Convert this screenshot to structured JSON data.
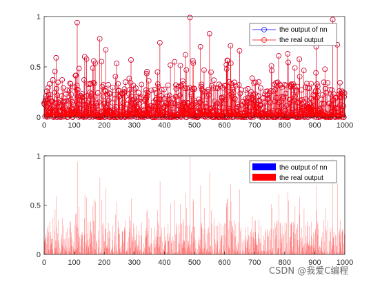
{
  "watermark": "CSDN @我爱C编程",
  "colors": {
    "nn": "#0000ff",
    "real": "#ff0000",
    "axis": "#262626"
  },
  "chart_data": [
    {
      "type": "stem",
      "title": "",
      "xlabel": "",
      "ylabel": "",
      "xlim": [
        0,
        1000
      ],
      "ylim": [
        0,
        1
      ],
      "xticks": [
        "0",
        "100",
        "200",
        "300",
        "400",
        "500",
        "600",
        "700",
        "800",
        "900",
        "1000"
      ],
      "yticks": [
        "0",
        "0.5",
        "1"
      ],
      "legend": {
        "position": "top-right",
        "entries": [
          "the output of nn",
          "the real output"
        ]
      },
      "series": [
        {
          "name": "the output of nn",
          "marker": "circle",
          "color": "#0000ff"
        },
        {
          "name": "the real output",
          "marker": "circle",
          "color": "#ff0000"
        }
      ],
      "n_points": 1000,
      "peaks": [
        {
          "x": 110,
          "y": 0.94
        },
        {
          "x": 185,
          "y": 0.78
        },
        {
          "x": 385,
          "y": 0.74
        },
        {
          "x": 485,
          "y": 0.99
        },
        {
          "x": 550,
          "y": 0.83
        },
        {
          "x": 520,
          "y": 0.7
        },
        {
          "x": 620,
          "y": 0.71
        },
        {
          "x": 960,
          "y": 0.97
        },
        {
          "x": 975,
          "y": 0.72
        },
        {
          "x": 905,
          "y": 0.7
        },
        {
          "x": 135,
          "y": 0.6
        },
        {
          "x": 205,
          "y": 0.67
        },
        {
          "x": 470,
          "y": 0.62
        },
        {
          "x": 650,
          "y": 0.66
        },
        {
          "x": 40,
          "y": 0.59
        },
        {
          "x": 810,
          "y": 0.63
        },
        {
          "x": 780,
          "y": 0.61
        }
      ]
    },
    {
      "type": "bar",
      "title": "",
      "xlabel": "",
      "ylabel": "",
      "xlim": [
        0,
        1000
      ],
      "ylim": [
        0,
        1
      ],
      "xticks": [
        "0",
        "100",
        "200",
        "300",
        "400",
        "500",
        "600",
        "700",
        "800",
        "900",
        "1000"
      ],
      "yticks": [
        "0",
        "0.5",
        "1"
      ],
      "legend": {
        "position": "top-right",
        "entries": [
          "the output of nn",
          "the real output"
        ]
      },
      "series": [
        {
          "name": "the output of nn",
          "color": "#0000ff"
        },
        {
          "name": "the real output",
          "color": "#ff0000"
        }
      ],
      "n_points": 1000,
      "peaks": [
        {
          "x": 110,
          "y": 0.94
        },
        {
          "x": 185,
          "y": 0.78
        },
        {
          "x": 385,
          "y": 0.74
        },
        {
          "x": 485,
          "y": 0.99
        },
        {
          "x": 550,
          "y": 0.83
        },
        {
          "x": 520,
          "y": 0.7
        },
        {
          "x": 620,
          "y": 0.71
        },
        {
          "x": 960,
          "y": 0.97
        },
        {
          "x": 975,
          "y": 0.72
        },
        {
          "x": 905,
          "y": 0.7
        },
        {
          "x": 135,
          "y": 0.6
        },
        {
          "x": 205,
          "y": 0.67
        },
        {
          "x": 470,
          "y": 0.62
        },
        {
          "x": 650,
          "y": 0.66
        },
        {
          "x": 40,
          "y": 0.59
        },
        {
          "x": 810,
          "y": 0.63
        },
        {
          "x": 780,
          "y": 0.61
        }
      ]
    }
  ]
}
